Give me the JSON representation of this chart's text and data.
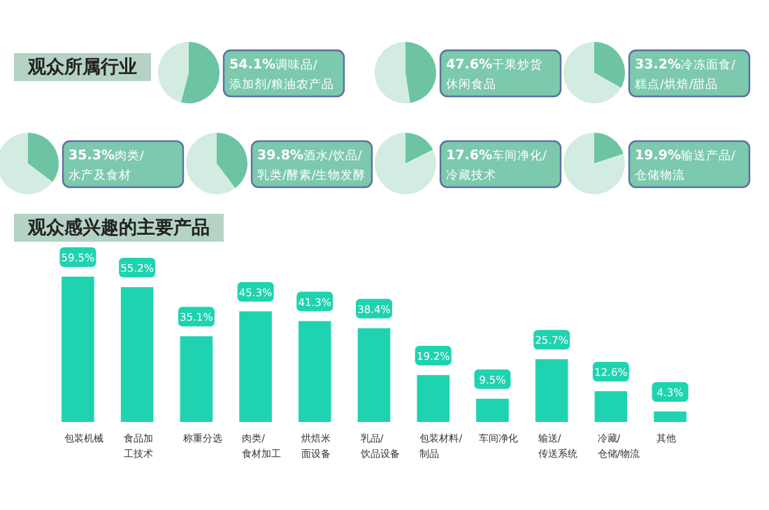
{
  "chart_data": [
    {
      "type": "pie",
      "title": "观众所属行业",
      "categories": [
        "调味品/添加剂/粮油农产品",
        null
      ],
      "values": [
        54.1,
        45.9
      ],
      "value_labels": [
        "54.1%",
        null
      ],
      "colors": [
        "#6cc4a2",
        "#d3ece2"
      ]
    },
    {
      "type": "pie",
      "categories": [
        "干果炒货休闲食品",
        null
      ],
      "values": [
        47.6,
        52.4
      ],
      "value_labels": [
        "47.6%",
        null
      ],
      "colors": [
        "#6cc4a2",
        "#d3ece2"
      ]
    },
    {
      "type": "pie",
      "categories": [
        "冷冻面食/糕点/烘焙/甜品",
        null
      ],
      "values": [
        33.2,
        66.8
      ],
      "value_labels": [
        "33.2%",
        null
      ],
      "colors": [
        "#6cc4a2",
        "#d3ece2"
      ]
    },
    {
      "type": "pie",
      "categories": [
        "肉类/水产及食材",
        null
      ],
      "values": [
        35.3,
        64.7
      ],
      "value_labels": [
        "35.3%",
        null
      ],
      "colors": [
        "#6cc4a2",
        "#d3ece2"
      ]
    },
    {
      "type": "pie",
      "categories": [
        "酒水/饮品/乳类/酵素/生物发酵",
        null
      ],
      "values": [
        39.8,
        60.2
      ],
      "value_labels": [
        "39.8%",
        null
      ],
      "colors": [
        "#6cc4a2",
        "#d3ece2"
      ]
    },
    {
      "type": "pie",
      "categories": [
        "车间净化/冷藏技术",
        null
      ],
      "values": [
        17.6,
        82.4
      ],
      "value_labels": [
        "17.6%",
        null
      ],
      "colors": [
        "#6cc4a2",
        "#d3ece2"
      ]
    },
    {
      "type": "pie",
      "categories": [
        "输送产品/仓储物流",
        null
      ],
      "values": [
        19.9,
        80.1
      ],
      "value_labels": [
        "19.9%",
        null
      ],
      "colors": [
        "#6cc4a2",
        "#d3ece2"
      ]
    },
    {
      "type": "bar",
      "title": "观众感兴趣的主要产品",
      "categories": [
        "包装机械",
        "食品加工技术",
        "称重分选",
        "肉类/食材加工",
        "烘焙米面设备",
        "乳品/饮品设备",
        "包装材料/制品",
        "车间净化",
        "输送/传送系统",
        "冷藏/仓储/物流",
        "其他"
      ],
      "values": [
        59.5,
        55.2,
        35.1,
        45.3,
        41.3,
        38.4,
        19.2,
        9.5,
        25.7,
        12.6,
        4.3
      ],
      "value_labels": [
        "59.5%",
        "55.2%",
        "35.1%",
        "45.3%",
        "41.3%",
        "38.4%",
        "19.2%",
        "9.5%",
        "25.7%",
        "12.6%",
        "4.3%"
      ],
      "color": "#1fd3b0"
    }
  ]
}
